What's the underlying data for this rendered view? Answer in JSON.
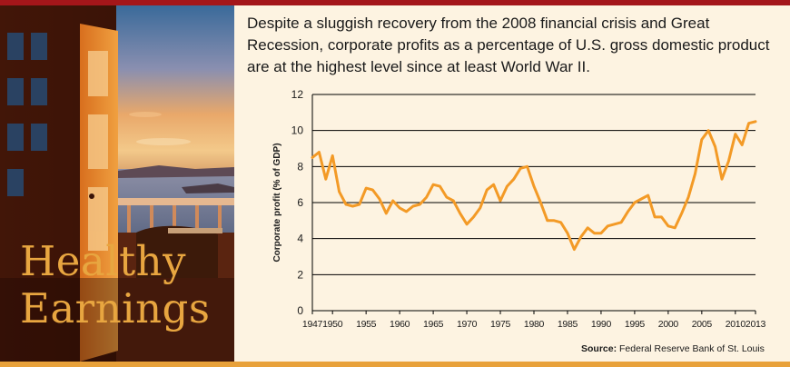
{
  "title": {
    "line1": "Healthy",
    "line2": "Earnings"
  },
  "description": "Despite a sluggish recovery from the 2008 financial crisis and Great Recession, corporate profits as a percentage of U.S. gross domestic product are at the highest level since at least World War II.",
  "source": {
    "label": "Source:",
    "text": "Federal Reserve Bank of St. Louis"
  },
  "colors": {
    "line": "#f39a26",
    "title": "#e8a640",
    "top_bar": "#a4161a",
    "bottom_bar": "#e8a13a",
    "background": "#fdf3e1"
  },
  "chart_data": {
    "type": "line",
    "title": "",
    "xlabel": "",
    "ylabel": "Corporate profit (% of GDP)",
    "xlim": [
      1947,
      2013
    ],
    "ylim": [
      0,
      12
    ],
    "yticks": [
      0,
      2,
      4,
      6,
      8,
      10,
      12
    ],
    "xticks": [
      1947,
      1950,
      1955,
      1960,
      1965,
      1970,
      1975,
      1980,
      1985,
      1990,
      1995,
      2000,
      2005,
      2010,
      2013
    ],
    "grid": "horizontal",
    "series": [
      {
        "x": [
          1947,
          1948,
          1949,
          1950,
          1951,
          1952,
          1953,
          1954,
          1955,
          1956,
          1957,
          1958,
          1959,
          1960,
          1961,
          1962,
          1963,
          1964,
          1965,
          1966,
          1967,
          1968,
          1969,
          1970,
          1971,
          1972,
          1973,
          1974,
          1975,
          1976,
          1977,
          1978,
          1979,
          1980,
          1981,
          1982,
          1983,
          1984,
          1985,
          1986,
          1987,
          1988,
          1989,
          1990,
          1991,
          1992,
          1993,
          1994,
          1995,
          1996,
          1997,
          1998,
          1999,
          2000,
          2001,
          2002,
          2003,
          2004,
          2005,
          2006,
          2007,
          2008,
          2009,
          2010,
          2011,
          2012,
          2013
        ],
        "y": [
          8.5,
          8.8,
          7.3,
          8.6,
          6.6,
          5.9,
          5.8,
          5.9,
          6.8,
          6.7,
          6.2,
          5.4,
          6.1,
          5.7,
          5.5,
          5.8,
          5.9,
          6.3,
          7.0,
          6.9,
          6.3,
          6.1,
          5.4,
          4.8,
          5.2,
          5.7,
          6.7,
          7.0,
          6.1,
          6.9,
          7.3,
          7.9,
          8.0,
          6.9,
          6.0,
          5.0,
          5.0,
          4.9,
          4.3,
          3.4,
          4.1,
          4.6,
          4.3,
          4.3,
          4.7,
          4.8,
          4.9,
          5.5,
          6.0,
          6.2,
          6.4,
          5.2,
          5.2,
          4.7,
          4.6,
          5.4,
          6.3,
          7.6,
          9.5,
          10.0,
          9.1,
          7.3,
          8.3,
          9.8,
          9.2,
          10.4,
          10.5
        ]
      }
    ]
  }
}
